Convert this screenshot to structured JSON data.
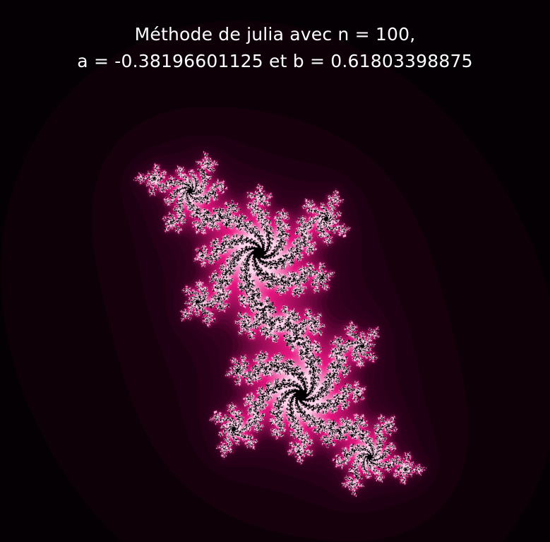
{
  "title": {
    "line1": "Méthode de julia avec n = 100,",
    "line2": "a = -0.38196601125 et b = 0.61803398875"
  },
  "fractal": {
    "type": "julia-set",
    "iterations": 100,
    "c_real": -0.38196601125,
    "c_imag": 0.61803398875,
    "colors": {
      "background": "#000000",
      "glow": "#3a0022",
      "magenta": "#e6157f",
      "highlight": "#ffd6ec",
      "interior": "#000000"
    }
  }
}
